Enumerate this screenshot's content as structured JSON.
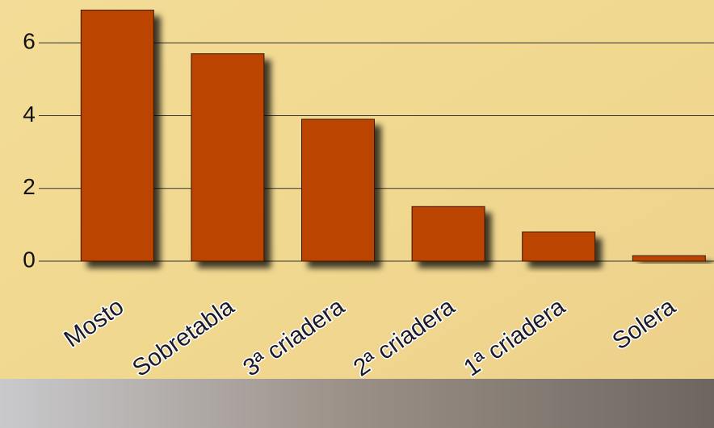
{
  "chart_data": {
    "type": "bar",
    "categories": [
      "Mosto",
      "Sobretabla",
      "3ª criadera",
      "2ª criadera",
      "1ª criadera",
      "Solera"
    ],
    "values": [
      6.9,
      5.7,
      3.9,
      1.5,
      0.8,
      0.15
    ],
    "color": "#bb4500",
    "ylim": [
      0,
      7.2
    ],
    "yticks": [
      0,
      2,
      4,
      6
    ],
    "grid": true
  }
}
